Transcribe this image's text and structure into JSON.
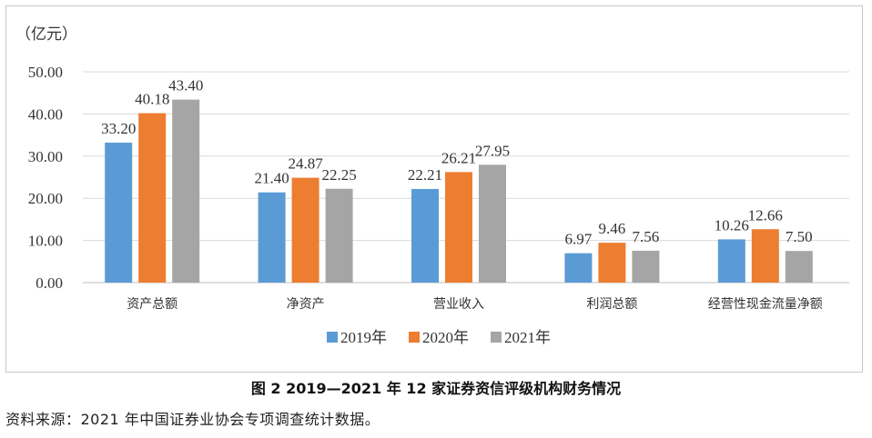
{
  "chart_data": {
    "type": "bar",
    "unit_label": "（亿元）",
    "categories": [
      "资产总额",
      "净资产",
      "营业收入",
      "利润总额",
      "经营性现金流量净额"
    ],
    "series": [
      {
        "name": "2019年",
        "color": "#5B9BD5",
        "values": [
          33.2,
          21.4,
          22.21,
          6.97,
          10.26
        ]
      },
      {
        "name": "2020年",
        "color": "#ED7D31",
        "values": [
          40.18,
          24.87,
          26.21,
          9.46,
          12.66
        ]
      },
      {
        "name": "2021年",
        "color": "#A5A5A5",
        "values": [
          43.4,
          22.25,
          27.95,
          7.56,
          7.5
        ]
      }
    ],
    "ylim": [
      0,
      50
    ],
    "yticks": [
      "0.00",
      "10.00",
      "20.00",
      "30.00",
      "40.00",
      "50.00"
    ],
    "grid": true,
    "legend_position": "bottom"
  },
  "caption": "图 2   2019—2021 年 12 家证券资信评级机构财务情况",
  "source": "资料来源：2021 年中国证券业协会专项调查统计数据。"
}
